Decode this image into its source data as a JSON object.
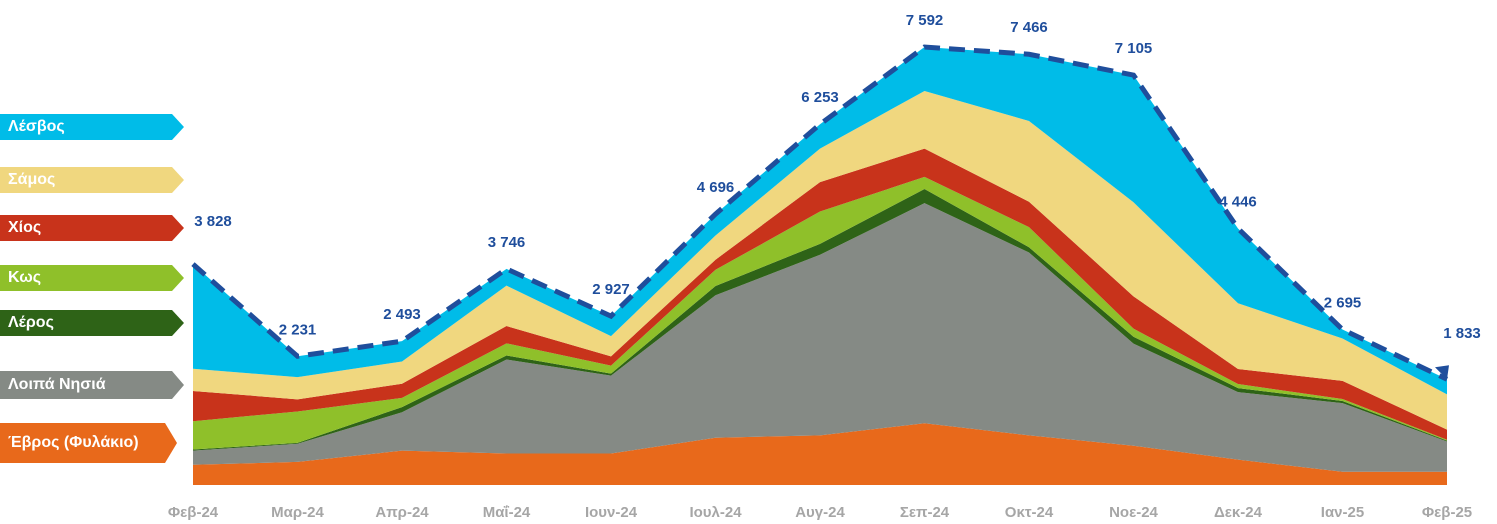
{
  "chart_data": {
    "type": "stacked_area",
    "categories": [
      "Φεβ-24",
      "Μαρ-24",
      "Απρ-24",
      "Μαΐ-24",
      "Ιουν-24",
      "Ιουλ-24",
      "Αυγ-24",
      "Σεπ-24",
      "Οκτ-24",
      "Νοε-24",
      "Δεκ-24",
      "Ιαν-25",
      "Φεβ-25"
    ],
    "series": [
      {
        "name": "Έβρος (Φυλάκιο)",
        "color": "#e8691b",
        "values": [
          350,
          400,
          595,
          545,
          545,
          820,
          860,
          1070,
          860,
          680,
          440,
          230,
          230
        ]
      },
      {
        "name": "Λοιπά Νησιά",
        "color": "#858a85",
        "values": [
          245,
          315,
          665,
          1630,
          1350,
          2470,
          3130,
          3815,
          3170,
          1770,
          1170,
          1190,
          525
        ]
      },
      {
        "name": "Λέρος",
        "color": "#2e6317",
        "values": [
          20,
          15,
          90,
          70,
          35,
          160,
          190,
          245,
          90,
          120,
          70,
          35,
          15
        ]
      },
      {
        "name": "Κως",
        "color": "#8fc02a",
        "values": [
          490,
          545,
          160,
          210,
          140,
          280,
          560,
          210,
          350,
          140,
          70,
          35,
          15
        ]
      },
      {
        "name": "Χίος",
        "color": "#c8331b",
        "values": [
          525,
          210,
          245,
          300,
          160,
          175,
          510,
          490,
          440,
          560,
          260,
          315,
          175
        ]
      },
      {
        "name": "Σάμος",
        "color": "#f0d77f",
        "values": [
          385,
          385,
          385,
          700,
          350,
          420,
          580,
          1000,
          1400,
          1630,
          1140,
          735,
          610
        ]
      },
      {
        "name": "Λέσβος",
        "color": "#00bce8",
        "values": [
          1813,
          361,
          353,
          291,
          347,
          371,
          423,
          762,
          1156,
          2205,
          1296,
          155,
          263
        ]
      }
    ],
    "totals": [
      3828,
      2231,
      2493,
      3746,
      2927,
      4696,
      6253,
      7592,
      7466,
      7105,
      4446,
      2695,
      1833
    ],
    "total_labels": [
      "3 828",
      "2 231",
      "2 493",
      "3 746",
      "2 927",
      "4 696",
      "6 253",
      "7 592",
      "7 466",
      "7 105",
      "4 446",
      "2 695",
      "1 833"
    ],
    "totals_color": "#1f4e9c"
  }
}
